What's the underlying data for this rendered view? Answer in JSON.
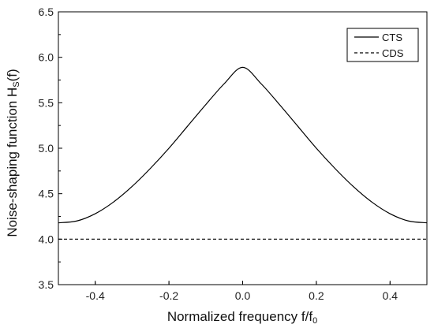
{
  "chart_data": {
    "type": "line",
    "xlabel": "Normalized frequency f/f",
    "xlabel_subscript": "0",
    "ylabel": "Noise-shaping function H",
    "ylabel_subscript": "S",
    "ylabel_suffix": "(f)",
    "xlim": [
      -0.5,
      0.5
    ],
    "ylim": [
      3.5,
      6.5
    ],
    "xticks": [
      -0.4,
      -0.2,
      0.0,
      0.2,
      0.4
    ],
    "xtick_labels": [
      "-0.4",
      "-0.2",
      "0.0",
      "0.2",
      "0.4"
    ],
    "yticks": [
      3.5,
      4.0,
      4.5,
      5.0,
      5.5,
      6.0,
      6.5
    ],
    "ytick_labels": [
      "3.5",
      "4.0",
      "4.5",
      "5.0",
      "5.5",
      "6.0",
      "6.5"
    ],
    "grid": false,
    "legend_position": "top-right",
    "series": [
      {
        "name": "CTS",
        "style": "solid",
        "color": "#000000",
        "x": [
          -0.5,
          -0.45,
          -0.4,
          -0.35,
          -0.3,
          -0.25,
          -0.2,
          -0.15,
          -0.1,
          -0.05,
          0.0,
          0.05,
          0.1,
          0.15,
          0.2,
          0.25,
          0.3,
          0.35,
          0.4,
          0.45,
          0.5
        ],
        "y": [
          4.18,
          4.2,
          4.28,
          4.41,
          4.58,
          4.78,
          5.0,
          5.24,
          5.48,
          5.71,
          5.89,
          5.71,
          5.48,
          5.24,
          5.0,
          4.78,
          4.58,
          4.41,
          4.28,
          4.2,
          4.18
        ]
      },
      {
        "name": "CDS",
        "style": "dashed",
        "color": "#000000",
        "x": [
          -0.5,
          0.5
        ],
        "y": [
          4.0,
          4.0
        ]
      }
    ]
  }
}
